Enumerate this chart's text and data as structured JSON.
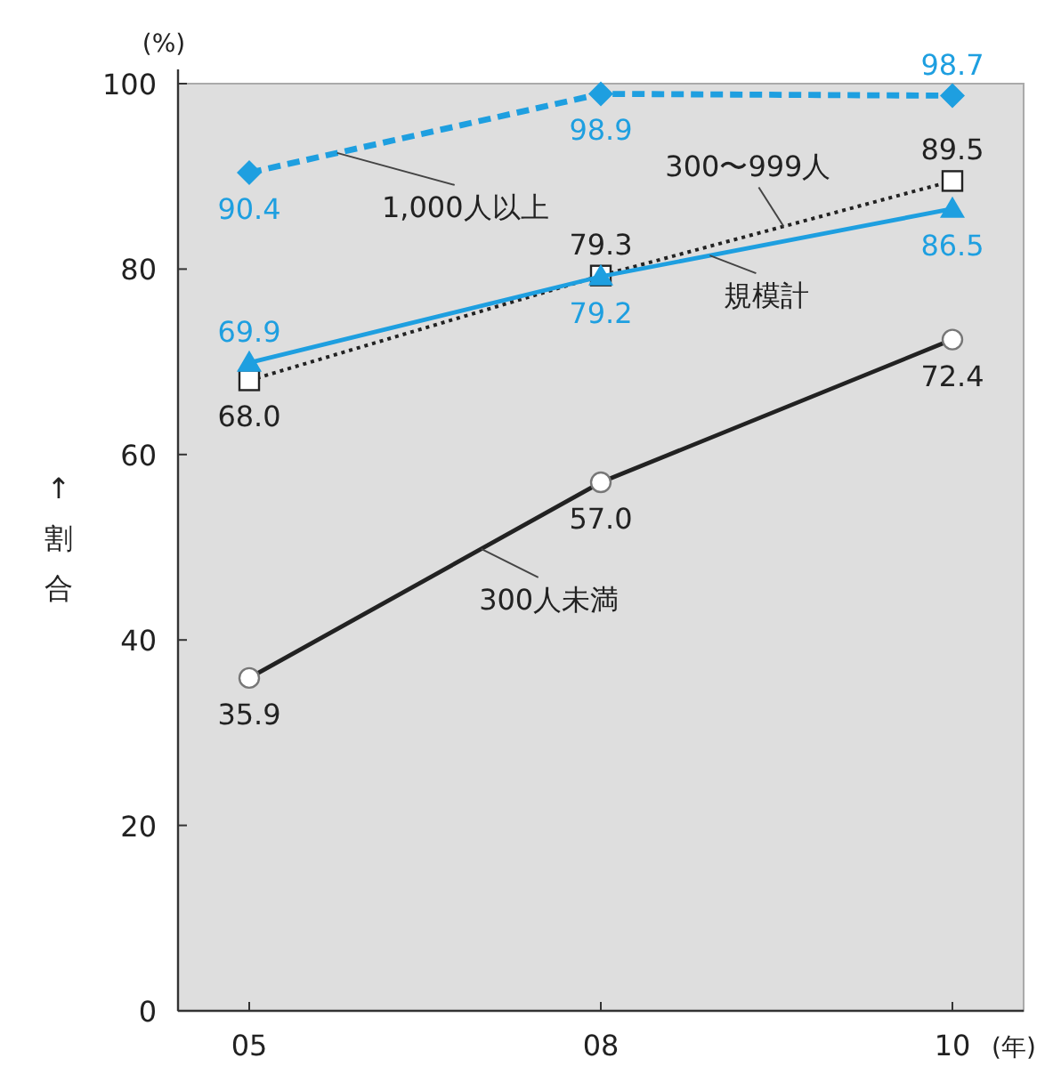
{
  "chart_data": {
    "type": "line",
    "categories": [
      "05",
      "08",
      "10"
    ],
    "xlabel": "(年)",
    "ylabel": "↑割合",
    "annotations": [
      "(%)"
    ],
    "ylim": [
      0,
      100
    ],
    "yticks": [
      0,
      20,
      40,
      60,
      80,
      100
    ],
    "grid": false,
    "series": [
      {
        "name": "1,000人以上",
        "color": "#1e9fe0",
        "marker": "diamond",
        "line_style": "dashed",
        "values": [
          90.4,
          98.9,
          98.7
        ],
        "value_labels": [
          "90.4",
          "98.9",
          "98.7"
        ]
      },
      {
        "name": "300〜999人",
        "color": "#222222",
        "marker": "square",
        "line_style": "dotted",
        "values": [
          68.0,
          79.3,
          89.5
        ],
        "value_labels": [
          "68.0",
          "79.3",
          "89.5"
        ]
      },
      {
        "name": "規模計",
        "color": "#1e9fe0",
        "marker": "triangle",
        "line_style": "solid",
        "values": [
          69.9,
          79.2,
          86.5
        ],
        "value_labels": [
          "69.9",
          "79.2",
          "86.5"
        ]
      },
      {
        "name": "300人未満",
        "color": "#222222",
        "marker": "circle",
        "line_style": "solid",
        "values": [
          35.9,
          57.0,
          72.4
        ],
        "value_labels": [
          "35.9",
          "57.0",
          "72.4"
        ]
      }
    ]
  }
}
